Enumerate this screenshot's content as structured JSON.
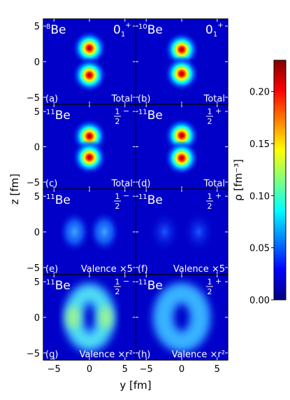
{
  "chart_data": {
    "type": "heatmap",
    "xlabel": "y [fm]",
    "ylabel": "z [fm]",
    "xlim": [
      -6.5,
      6.5
    ],
    "ylim": [
      -6.0,
      6.0
    ],
    "x_ticks": [
      "−5",
      "0",
      "5"
    ],
    "y_ticks": [
      "5",
      "0",
      "−5"
    ],
    "colorbar": {
      "label": "ρ [fm⁻³]",
      "range": [
        0.0,
        0.23
      ],
      "ticks": [
        "0.00",
        "0.05",
        "0.10",
        "0.15",
        "0.20"
      ],
      "tick_values": [
        0.0,
        0.05,
        0.1,
        0.15,
        0.2
      ],
      "colormap": "jet"
    },
    "panels": [
      {
        "tag": "(a)",
        "nucleus": "Be",
        "mass": "8",
        "state": "0",
        "state_sub": "1",
        "state_sup": "+",
        "label": "Total",
        "peak_density": 0.215,
        "blobs": [
          [
            0,
            1.9
          ],
          [
            0,
            -1.9
          ]
        ]
      },
      {
        "tag": "(b)",
        "nucleus": "Be",
        "mass": "10",
        "state": "0",
        "state_sub": "1",
        "state_sup": "+",
        "label": "Total",
        "peak_density": 0.215,
        "blobs": [
          [
            0,
            1.7
          ],
          [
            0,
            -1.7
          ]
        ]
      },
      {
        "tag": "(c)",
        "nucleus": "Be",
        "mass": "11",
        "state": "1/2",
        "state_sup": "−",
        "label": "Total",
        "peak_density": 0.215,
        "blobs": [
          [
            0,
            1.5
          ],
          [
            0,
            -1.5
          ]
        ]
      },
      {
        "tag": "(d)",
        "nucleus": "Be",
        "mass": "11",
        "state": "1/2",
        "state_sup": "+",
        "label": "Total",
        "peak_density": 0.215,
        "blobs": [
          [
            0,
            1.6
          ],
          [
            0,
            -1.6
          ]
        ]
      },
      {
        "tag": "(e)",
        "nucleus": "Be",
        "mass": "11",
        "state": "1/2",
        "state_sup": "−",
        "label": "Valence ×5",
        "peak_density": 0.075,
        "blobs": [
          [
            -2.1,
            0
          ],
          [
            2.1,
            0
          ]
        ]
      },
      {
        "tag": "(f)",
        "nucleus": "Be",
        "mass": "11",
        "state": "1/2",
        "state_sup": "+",
        "label": "Valence ×5",
        "peak_density": 0.035,
        "blobs": [
          [
            -2.4,
            0
          ],
          [
            2.4,
            0
          ]
        ]
      },
      {
        "tag": "(g)",
        "nucleus": "Be",
        "mass": "11",
        "state": "1/2",
        "state_sup": "−",
        "label": "Valence ×r²",
        "peak_density": 0.09,
        "ring": {
          "ry": 2.2,
          "rz": 3.4
        }
      },
      {
        "tag": "(h)",
        "nucleus": "Be",
        "mass": "11",
        "state": "1/2",
        "state_sup": "+",
        "label": "Valence ×r²",
        "peak_density": 0.07,
        "ring": {
          "ry": 2.6,
          "rz": 3.4
        }
      }
    ]
  }
}
